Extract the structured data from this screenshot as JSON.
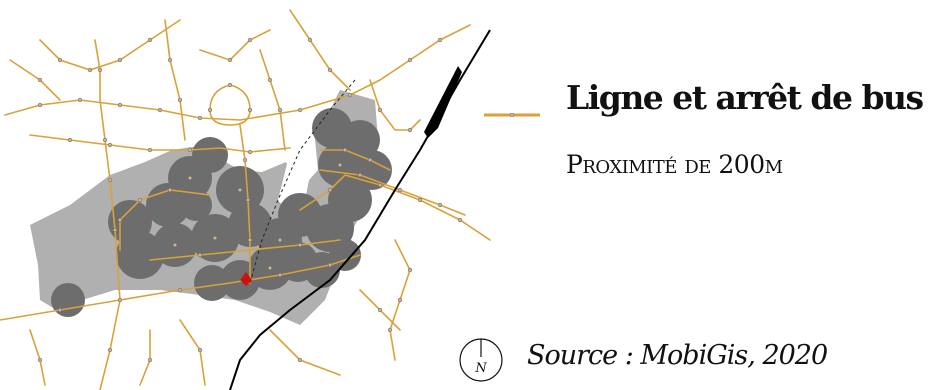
{
  "legend": {
    "bus_line_label": "Ligne et arrêt de bus",
    "proximity_label": "Proximité de 200m",
    "bus_line_icon": "bus-line-with-stop"
  },
  "north_arrow": {
    "letter": "N"
  },
  "source": "Source : MobiGis, 2020",
  "colors": {
    "bus_line": "#d7a23a",
    "bus_stop": "#c9b6a0",
    "proximity_buffer": "#6d6d6d",
    "urban_area": "#b0b0b0",
    "railway": "#000000",
    "highlight_stop": "#cc1111"
  }
}
